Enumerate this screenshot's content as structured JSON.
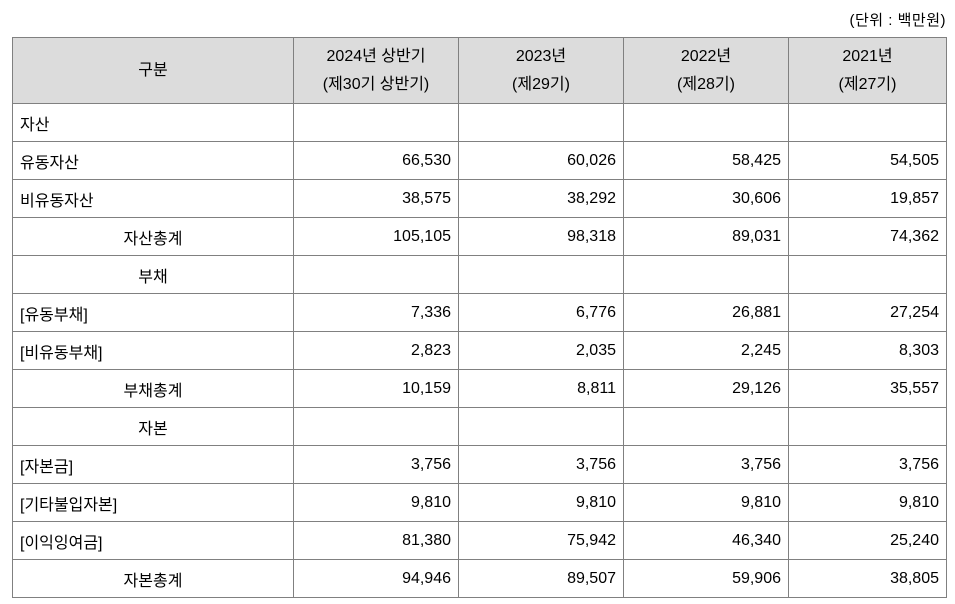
{
  "unit_label": "(단위 : 백만원)",
  "table": {
    "columns": [
      {
        "line1": "구분",
        "line2": ""
      },
      {
        "line1": "2024년 상반기",
        "line2": "(제30기 상반기)"
      },
      {
        "line1": "2023년",
        "line2": "(제29기)"
      },
      {
        "line1": "2022년",
        "line2": "(제28기)"
      },
      {
        "line1": "2021년",
        "line2": "(제27기)"
      }
    ],
    "rows": [
      {
        "label": "자산",
        "align": "left",
        "values": [
          "",
          "",
          "",
          ""
        ]
      },
      {
        "label": "유동자산",
        "align": "left",
        "values": [
          "66,530",
          "60,026",
          "58,425",
          "54,505"
        ]
      },
      {
        "label": "비유동자산",
        "align": "left",
        "values": [
          "38,575",
          "38,292",
          "30,606",
          "19,857"
        ]
      },
      {
        "label": "자산총계",
        "align": "center",
        "values": [
          "105,105",
          "98,318",
          "89,031",
          "74,362"
        ]
      },
      {
        "label": "부채",
        "align": "center",
        "values": [
          "",
          "",
          "",
          ""
        ]
      },
      {
        "label": "[유동부채]",
        "align": "left",
        "values": [
          "7,336",
          "6,776",
          "26,881",
          "27,254"
        ]
      },
      {
        "label": "[비유동부채]",
        "align": "left",
        "values": [
          "2,823",
          "2,035",
          "2,245",
          "8,303"
        ]
      },
      {
        "label": "부채총계",
        "align": "center",
        "values": [
          "10,159",
          "8,811",
          "29,126",
          "35,557"
        ]
      },
      {
        "label": "자본",
        "align": "center",
        "values": [
          "",
          "",
          "",
          ""
        ]
      },
      {
        "label": "[자본금]",
        "align": "left",
        "values": [
          "3,756",
          "3,756",
          "3,756",
          "3,756"
        ]
      },
      {
        "label": "[기타불입자본]",
        "align": "left",
        "values": [
          "9,810",
          "9,810",
          "9,810",
          "9,810"
        ]
      },
      {
        "label": "[이익잉여금]",
        "align": "left",
        "values": [
          "81,380",
          "75,942",
          "46,340",
          "25,240"
        ]
      },
      {
        "label": "자본총계",
        "align": "center",
        "values": [
          "94,946",
          "89,507",
          "59,906",
          "38,805"
        ]
      }
    ]
  },
  "colors": {
    "header_bg": "#dcdcdc",
    "grid_line": "#808080",
    "outer_border": "#3a3a3a",
    "text": "#000000"
  }
}
